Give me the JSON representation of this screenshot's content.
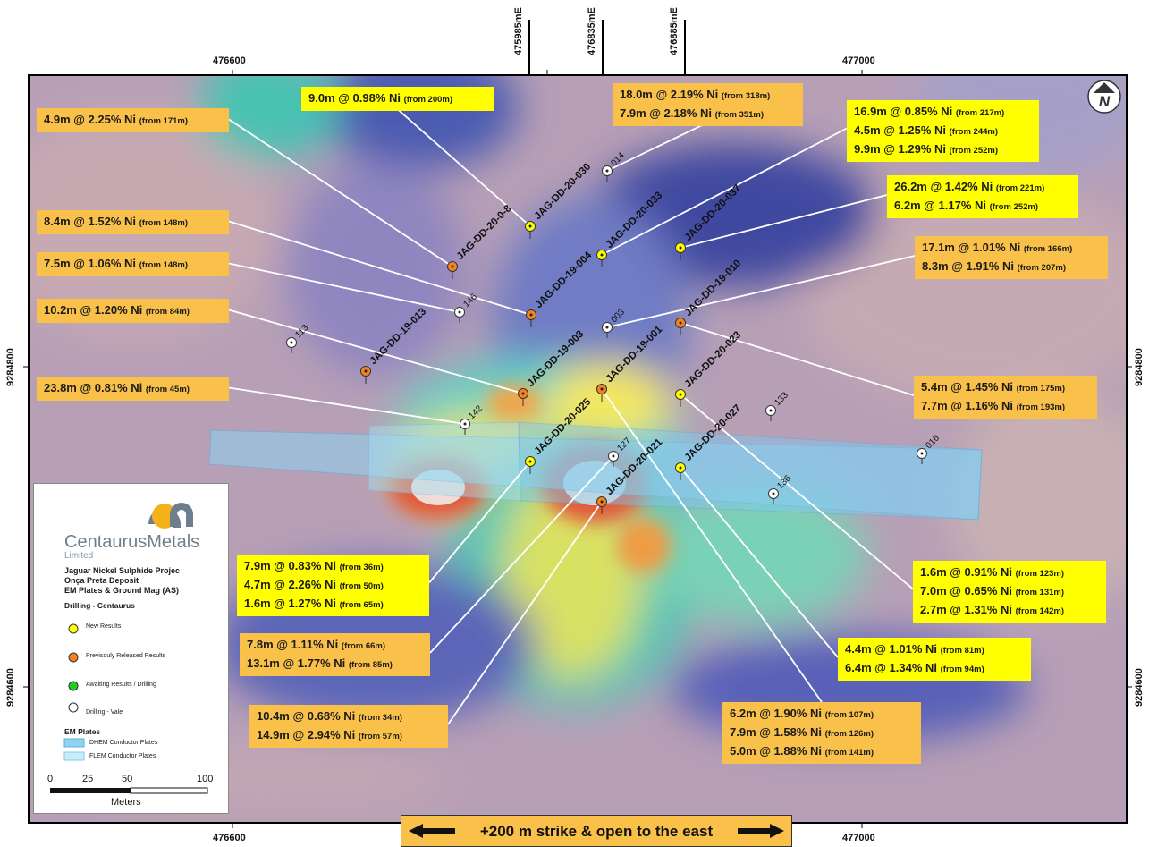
{
  "map": {
    "top_ticks": [
      "476600",
      "477000"
    ],
    "bottom_ticks": [
      "476600",
      "477000"
    ],
    "left_ticks": [
      "9284800",
      "9284600"
    ],
    "right_ticks": [
      "9284800",
      "9284600"
    ],
    "section_lines": [
      "475985mE",
      "476835mE",
      "476885mE"
    ],
    "north_arrow": "N"
  },
  "drillholes": [
    {
      "label": "JAG-DD-20-0-8",
      "status": "previous"
    },
    {
      "label": "JAG-DD-20-030",
      "status": "new"
    },
    {
      "label": "JAG-DD-20-033",
      "status": "new"
    },
    {
      "label": "JAG-DD-20-037",
      "status": "new"
    },
    {
      "label": "JAG-DD-19-004",
      "status": "previous"
    },
    {
      "label": "JAG-DD-19-010",
      "status": "previous"
    },
    {
      "label": "JAG-DD-19-013",
      "status": "previous"
    },
    {
      "label": "JAG-DD-19-003",
      "status": "previous"
    },
    {
      "label": "JAG-DD-19-001",
      "status": "previous"
    },
    {
      "label": "JAG-DD-20-023",
      "status": "new"
    },
    {
      "label": "JAG-DD-20-025",
      "status": "new"
    },
    {
      "label": "JAG-DD-20-021",
      "status": "previous"
    },
    {
      "label": "JAG-DD-20-027",
      "status": "new"
    }
  ],
  "vale_holes": [
    "014",
    "146",
    "003",
    "113",
    "142",
    "127",
    "133",
    "016",
    "136"
  ],
  "annotations": [
    {
      "id": "a1",
      "style": "prev",
      "lines": [
        {
          "main": "4.9m @ 2.25% Ni",
          "from": "(from 171m)"
        }
      ]
    },
    {
      "id": "a2",
      "style": "new",
      "lines": [
        {
          "main": "9.0m @ 0.98% Ni",
          "from": "(from 200m)"
        }
      ]
    },
    {
      "id": "a3",
      "style": "prev",
      "lines": [
        {
          "main": "18.0m @ 2.19% Ni",
          "from": "(from 318m)"
        },
        {
          "main": "7.9m @ 2.18% Ni",
          "from": "(from 351m)"
        }
      ]
    },
    {
      "id": "a4",
      "style": "new",
      "lines": [
        {
          "main": "16.9m @ 0.85% Ni",
          "from": "(from 217m)"
        },
        {
          "main": "4.5m @ 1.25% Ni",
          "from": "(from 244m)"
        },
        {
          "main": "9.9m @ 1.29% Ni",
          "from": "(from 252m)"
        }
      ]
    },
    {
      "id": "a5",
      "style": "new",
      "lines": [
        {
          "main": "26.2m @ 1.42% Ni",
          "from": "(from 221m)"
        },
        {
          "main": "6.2m @ 1.17% Ni",
          "from": "(from 252m)"
        }
      ]
    },
    {
      "id": "a6",
      "style": "prev",
      "lines": [
        {
          "main": "8.4m @ 1.52% Ni",
          "from": "(from 148m)"
        }
      ]
    },
    {
      "id": "a7",
      "style": "prev",
      "lines": [
        {
          "main": "7.5m @ 1.06% Ni",
          "from": "(from 148m)"
        }
      ]
    },
    {
      "id": "a8",
      "style": "prev",
      "lines": [
        {
          "main": "17.1m @ 1.01% Ni",
          "from": "(from 166m)"
        },
        {
          "main": "8.3m @ 1.91% Ni",
          "from": "(from 207m)"
        }
      ]
    },
    {
      "id": "a9",
      "style": "prev",
      "lines": [
        {
          "main": "10.2m @ 1.20% Ni",
          "from": "(from 84m)"
        }
      ]
    },
    {
      "id": "a10",
      "style": "prev",
      "lines": [
        {
          "main": "23.8m @ 0.81% Ni",
          "from": "(from 45m)"
        }
      ]
    },
    {
      "id": "a11",
      "style": "prev",
      "lines": [
        {
          "main": "5.4m @ 1.45% Ni",
          "from": "(from 175m)"
        },
        {
          "main": "7.7m @ 1.16% Ni",
          "from": "(from 193m)"
        }
      ]
    },
    {
      "id": "a12",
      "style": "new",
      "lines": [
        {
          "main": "7.9m @ 0.83% Ni",
          "from": "(from 36m)"
        },
        {
          "main": "4.7m @ 2.26% Ni",
          "from": "(from 50m)"
        },
        {
          "main": "1.6m @ 1.27% Ni",
          "from": "(from 65m)"
        }
      ]
    },
    {
      "id": "a13",
      "style": "new",
      "lines": [
        {
          "main": "1.6m @ 0.91% Ni",
          "from": "(from 123m)"
        },
        {
          "main": "7.0m @ 0.65% Ni",
          "from": "(from 131m)"
        },
        {
          "main": "2.7m @ 1.31% Ni",
          "from": "(from 142m)"
        }
      ]
    },
    {
      "id": "a14",
      "style": "prev",
      "lines": [
        {
          "main": "7.8m @ 1.11% Ni",
          "from": "(from 66m)"
        },
        {
          "main": "13.1m @ 1.77% Ni",
          "from": "(from 85m)"
        }
      ]
    },
    {
      "id": "a15",
      "style": "new",
      "lines": [
        {
          "main": "4.4m @ 1.01% Ni",
          "from": "(from 81m)"
        },
        {
          "main": "6.4m @ 1.34% Ni",
          "from": "(from 94m)"
        }
      ]
    },
    {
      "id": "a16",
      "style": "prev",
      "lines": [
        {
          "main": "10.4m @ 0.68% Ni",
          "from": "(from 34m)"
        },
        {
          "main": "14.9m @ 2.94% Ni",
          "from": "(from 57m)"
        }
      ]
    },
    {
      "id": "a17",
      "style": "prev",
      "lines": [
        {
          "main": "6.2m @ 1.90% Ni",
          "from": "(from 107m)"
        },
        {
          "main": "7.9m @ 1.58% Ni",
          "from": "(from 126m)"
        },
        {
          "main": "5.0m @ 1.88% Ni",
          "from": "(from 141m)"
        }
      ]
    }
  ],
  "legend": {
    "brand": "CentaurusMetals",
    "brand_sub": "Limited",
    "title_lines": [
      "Jaguar Nickel Sulphide Projec",
      "Onça Preta  Deposit",
      "EM Plates & Ground Mag (AS)"
    ],
    "drilling_heading": "Drilling - Centaurus",
    "items": [
      "New Results",
      "Previsouly Released Results",
      "Awaiting Results / Drilling",
      "Drilling - Vale"
    ],
    "em_heading": "EM Plates",
    "em_items": [
      "DHEM Conductor Plates",
      "FLEM Conductor Plates"
    ],
    "scale_ticks": [
      "0",
      "25",
      "50",
      "100"
    ],
    "scale_unit": "Meters"
  },
  "banner": {
    "text": "+200 m strike & open to the east"
  },
  "colors": {
    "new": "#ffff00",
    "previous": "#f58220",
    "awaiting": "#22cc22",
    "vale": "#ffffff",
    "box_prev": "#f9c14a",
    "box_new": "#ffff00"
  }
}
